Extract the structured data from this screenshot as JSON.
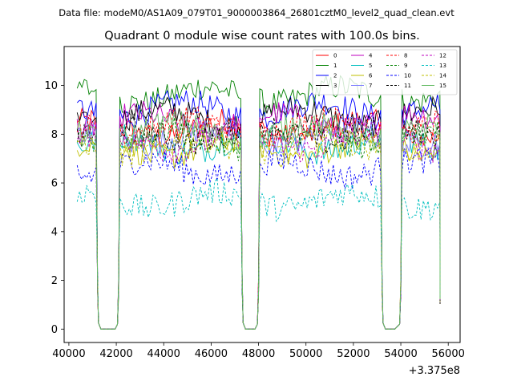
{
  "figure": {
    "suptitle": "Data file: modeM0/AS1A09_079T01_9000003864_26801cztM0_level2_quad_clean.evt",
    "title": "Quadrant 0 module wise count rates with 100.0s bins.",
    "x_offset_label": "+3.375e8"
  },
  "chart_data": {
    "type": "line",
    "title": "Quadrant 0 module wise count rates with 100.0s bins.",
    "xlabel": "",
    "ylabel": "",
    "x_offset": 337500000,
    "xlim": [
      39800,
      56500
    ],
    "ylim": [
      -0.55,
      11.6
    ],
    "xticks": [
      40000,
      42000,
      44000,
      46000,
      48000,
      50000,
      52000,
      54000,
      56000
    ],
    "xtick_labels": [
      "40000",
      "42000",
      "44000",
      "46000",
      "48000",
      "50000",
      "52000",
      "54000",
      "56000"
    ],
    "yticks": [
      0,
      2,
      4,
      6,
      8,
      10
    ],
    "ytick_labels": [
      "0",
      "2",
      "4",
      "6",
      "8",
      "10"
    ],
    "bin_seconds": 100,
    "segments": [
      {
        "start": 40350,
        "end": 41150
      },
      {
        "start": 42150,
        "end": 47250
      },
      {
        "start": 48050,
        "end": 53150
      },
      {
        "start": 54050,
        "end": 55650
      }
    ],
    "legend": {
      "position": "upper right",
      "columns": 4
    },
    "series": [
      {
        "name": "0",
        "color": "#ff0000",
        "dash": "solid",
        "level": 8.2
      },
      {
        "name": "1",
        "color": "#008000",
        "dash": "solid",
        "level": 9.6
      },
      {
        "name": "2",
        "color": "#0000ff",
        "dash": "solid",
        "level": 9.0
      },
      {
        "name": "3",
        "color": "#000000",
        "dash": "solid",
        "level": 8.7
      },
      {
        "name": "4",
        "color": "#bf00bf",
        "dash": "solid",
        "level": 8.5
      },
      {
        "name": "5",
        "color": "#00bfbf",
        "dash": "solid",
        "level": 7.6
      },
      {
        "name": "6",
        "color": "#bfbf00",
        "dash": "solid",
        "level": 7.4
      },
      {
        "name": "7",
        "color": "#7f7fff",
        "dash": "solid",
        "level": 7.9
      },
      {
        "name": "8",
        "color": "#ff0000",
        "dash": "dashed",
        "level": 8.3
      },
      {
        "name": "9",
        "color": "#008000",
        "dash": "dashed",
        "level": 7.8
      },
      {
        "name": "10",
        "color": "#0000ff",
        "dash": "dashed",
        "level": 6.6
      },
      {
        "name": "11",
        "color": "#000000",
        "dash": "dashed",
        "level": 8.0
      },
      {
        "name": "12",
        "color": "#bf00bf",
        "dash": "dashed",
        "level": 7.7
      },
      {
        "name": "13",
        "color": "#00bfbf",
        "dash": "dashed",
        "level": 5.3
      },
      {
        "name": "14",
        "color": "#bfbf00",
        "dash": "dashed",
        "level": 7.5
      },
      {
        "name": "15",
        "color": "#66bb66",
        "dash": "solid",
        "level": 8.1
      }
    ]
  }
}
